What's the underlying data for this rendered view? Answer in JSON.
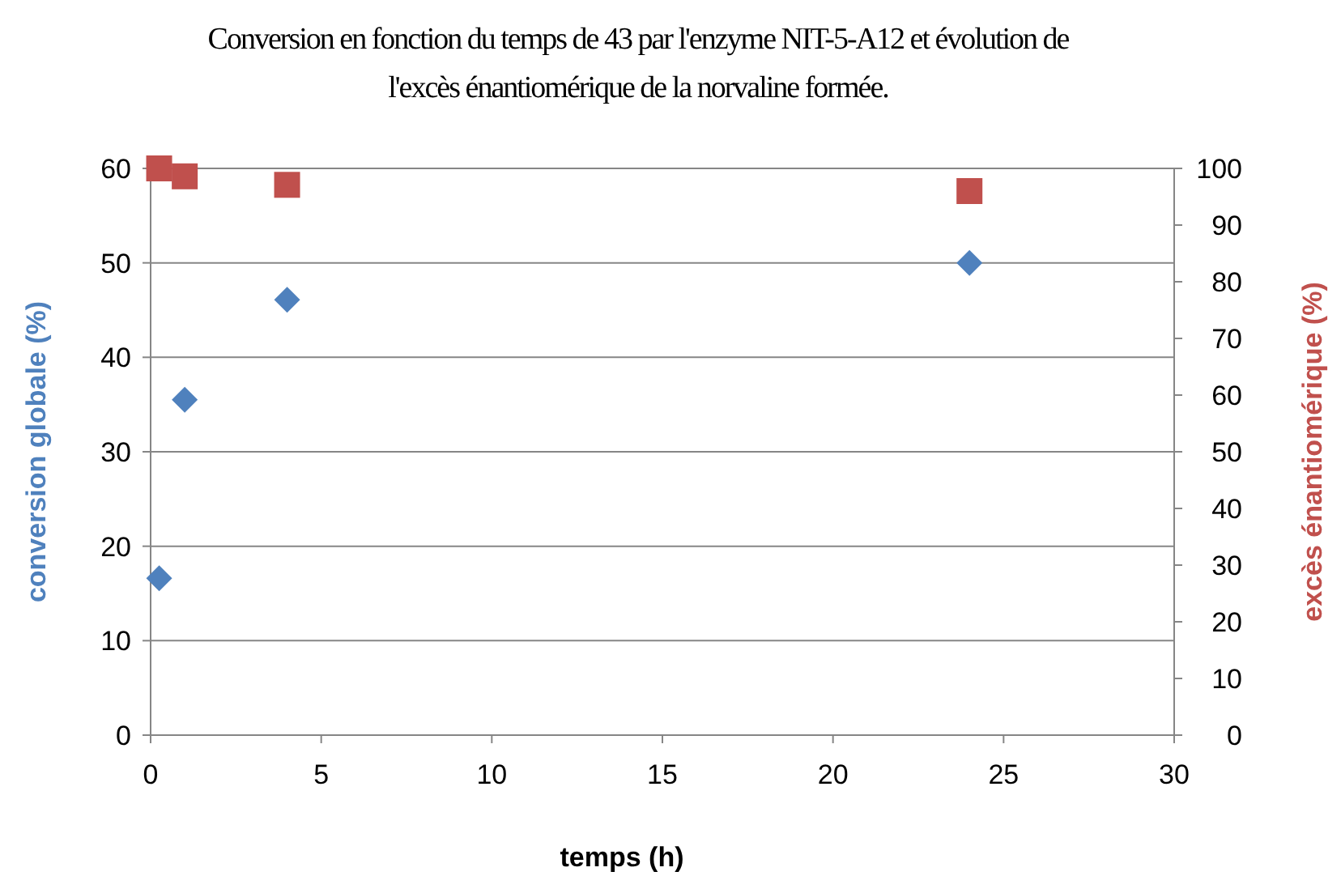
{
  "chart_data": {
    "type": "scatter",
    "title": "Conversion en fonction du temps de 43 par l'enzyme NIT-5-A12 et évolution de l'excès énantiomérique de la norvaline formée.",
    "xlabel": "temps (h)",
    "ylabel": "conversion globale (%)",
    "y2label": "excès énantiomérique (%)",
    "x": [
      0.25,
      1,
      4,
      24
    ],
    "series": [
      {
        "color": "#4f81bd",
        "marker": "diamond",
        "values": [
          16.6,
          35.5,
          46.1,
          50
        ]
      },
      {
        "color": "#c0504d",
        "marker": "square",
        "axis": "y2",
        "values": [
          100,
          98.6,
          97.1,
          96
        ]
      }
    ],
    "xlim": [
      0,
      30
    ],
    "xticks": [
      0,
      5,
      10,
      15,
      20,
      25,
      30
    ],
    "ylim": [
      0,
      60
    ],
    "yticks": [
      0,
      10,
      20,
      30,
      40,
      50,
      60
    ],
    "y2lim": [
      0,
      100
    ],
    "y2ticks": [
      0,
      10,
      20,
      30,
      40,
      50,
      60,
      70,
      80,
      90,
      100
    ],
    "grid": "y"
  }
}
